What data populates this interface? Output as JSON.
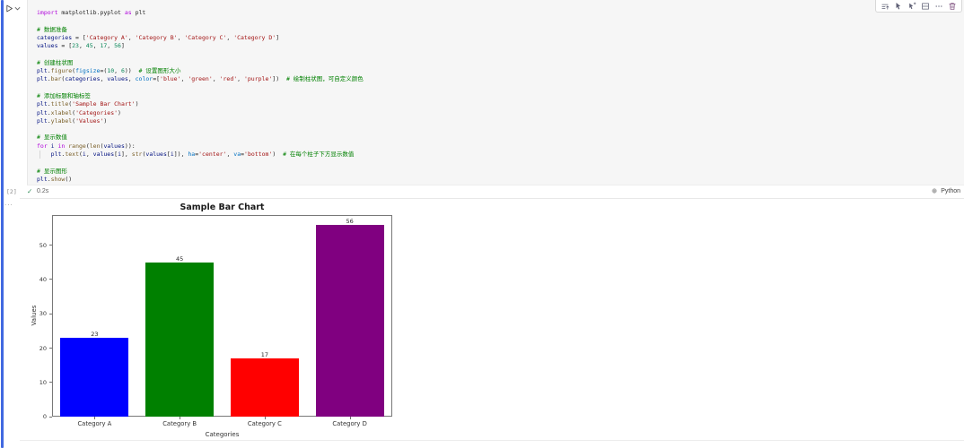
{
  "editor": {
    "execution_count": "[2]",
    "status_check": "✓",
    "status_time": "0.2s",
    "language_label": "Python",
    "code_lines": [
      [
        [
          "k",
          "import"
        ],
        [
          "p",
          " matplotlib.pyplot "
        ],
        [
          "k",
          "as"
        ],
        [
          "p",
          " plt"
        ]
      ],
      [],
      [
        [
          "c",
          "# 数据准备"
        ]
      ],
      [
        [
          "v",
          "categories"
        ],
        [
          "p",
          " = ["
        ],
        [
          "s",
          "'Category A'"
        ],
        [
          "p",
          ", "
        ],
        [
          "s",
          "'Category B'"
        ],
        [
          "p",
          ", "
        ],
        [
          "s",
          "'Category C'"
        ],
        [
          "p",
          ", "
        ],
        [
          "s",
          "'Category D'"
        ],
        [
          "p",
          "]"
        ]
      ],
      [
        [
          "v",
          "values"
        ],
        [
          "p",
          " = ["
        ],
        [
          "n",
          "23"
        ],
        [
          "p",
          ", "
        ],
        [
          "n",
          "45"
        ],
        [
          "p",
          ", "
        ],
        [
          "n",
          "17"
        ],
        [
          "p",
          ", "
        ],
        [
          "n",
          "56"
        ],
        [
          "p",
          "]"
        ]
      ],
      [],
      [
        [
          "c",
          "# 创建柱状图"
        ]
      ],
      [
        [
          "v",
          "plt"
        ],
        [
          "p",
          "."
        ],
        [
          "f",
          "figure"
        ],
        [
          "p",
          "("
        ],
        [
          "a",
          "figsize"
        ],
        [
          "p",
          "=("
        ],
        [
          "n",
          "10"
        ],
        [
          "p",
          ", "
        ],
        [
          "n",
          "6"
        ],
        [
          "p",
          "))  "
        ],
        [
          "c",
          "# 设置图形大小"
        ]
      ],
      [
        [
          "v",
          "plt"
        ],
        [
          "p",
          "."
        ],
        [
          "f",
          "bar"
        ],
        [
          "p",
          "("
        ],
        [
          "v",
          "categories"
        ],
        [
          "p",
          ", "
        ],
        [
          "v",
          "values"
        ],
        [
          "p",
          ", "
        ],
        [
          "a",
          "color"
        ],
        [
          "p",
          "=["
        ],
        [
          "s",
          "'blue'"
        ],
        [
          "p",
          ", "
        ],
        [
          "s",
          "'green'"
        ],
        [
          "p",
          ", "
        ],
        [
          "s",
          "'red'"
        ],
        [
          "p",
          ", "
        ],
        [
          "s",
          "'purple'"
        ],
        [
          "p",
          "])  "
        ],
        [
          "c",
          "# 绘制柱状图，可自定义颜色"
        ]
      ],
      [],
      [
        [
          "c",
          "# 添加标题和轴标签"
        ]
      ],
      [
        [
          "v",
          "plt"
        ],
        [
          "p",
          "."
        ],
        [
          "f",
          "title"
        ],
        [
          "p",
          "("
        ],
        [
          "s",
          "'Sample Bar Chart'"
        ],
        [
          "p",
          ")"
        ]
      ],
      [
        [
          "v",
          "plt"
        ],
        [
          "p",
          "."
        ],
        [
          "f",
          "xlabel"
        ],
        [
          "p",
          "("
        ],
        [
          "s",
          "'Categories'"
        ],
        [
          "p",
          ")"
        ]
      ],
      [
        [
          "v",
          "plt"
        ],
        [
          "p",
          "."
        ],
        [
          "f",
          "ylabel"
        ],
        [
          "p",
          "("
        ],
        [
          "s",
          "'Values'"
        ],
        [
          "p",
          ")"
        ]
      ],
      [],
      [
        [
          "c",
          "# 显示数值"
        ]
      ],
      [
        [
          "k",
          "for"
        ],
        [
          "p",
          " "
        ],
        [
          "v",
          "i"
        ],
        [
          "p",
          " "
        ],
        [
          "k",
          "in"
        ],
        [
          "p",
          " "
        ],
        [
          "f",
          "range"
        ],
        [
          "p",
          "("
        ],
        [
          "f",
          "len"
        ],
        [
          "p",
          "("
        ],
        [
          "v",
          "values"
        ],
        [
          "p",
          ")):"
        ]
      ],
      [
        [
          "p",
          "    "
        ],
        [
          "v",
          "plt"
        ],
        [
          "p",
          "."
        ],
        [
          "f",
          "text"
        ],
        [
          "p",
          "("
        ],
        [
          "v",
          "i"
        ],
        [
          "p",
          ", "
        ],
        [
          "v",
          "values"
        ],
        [
          "p",
          "["
        ],
        [
          "v",
          "i"
        ],
        [
          "p",
          "], "
        ],
        [
          "f",
          "str"
        ],
        [
          "p",
          "("
        ],
        [
          "v",
          "values"
        ],
        [
          "p",
          "["
        ],
        [
          "v",
          "i"
        ],
        [
          "p",
          "]), "
        ],
        [
          "a",
          "ha"
        ],
        [
          "p",
          "="
        ],
        [
          "s",
          "'center'"
        ],
        [
          "p",
          ", "
        ],
        [
          "a",
          "va"
        ],
        [
          "p",
          "="
        ],
        [
          "s",
          "'bottom'"
        ],
        [
          "p",
          ")  "
        ],
        [
          "c",
          "# 在每个柱子下方显示数值"
        ]
      ],
      [],
      [
        [
          "c",
          "# 显示图形"
        ]
      ],
      [
        [
          "v",
          "plt"
        ],
        [
          "p",
          "."
        ],
        [
          "f",
          "show"
        ],
        [
          "p",
          "()"
        ]
      ]
    ]
  },
  "toolbar": {
    "icons": [
      "execute-above-icon",
      "execute-cell-and-below-icon",
      "debug-cell-icon",
      "split-cell-icon",
      "more-actions-icon",
      "delete-cell-icon"
    ]
  },
  "gutter": {
    "run_icon": "run-cell-icon",
    "dropdown_icon": "chevron-down-icon"
  },
  "output": {
    "collapse_label": "..."
  },
  "chart_data": {
    "type": "bar",
    "title": "Sample Bar Chart",
    "xlabel": "Categories",
    "ylabel": "Values",
    "categories": [
      "Category A",
      "Category B",
      "Category C",
      "Category D"
    ],
    "values": [
      23,
      45,
      17,
      56
    ],
    "value_labels": [
      "23",
      "45",
      "17",
      "56"
    ],
    "bar_colors": [
      "#0000ff",
      "#008000",
      "#ff0000",
      "#800080"
    ],
    "yticks": [
      0,
      10,
      20,
      30,
      40,
      50
    ],
    "ylim": [
      0,
      58.8
    ],
    "bar_width_fraction": 0.8,
    "grid": false,
    "legend": "none"
  },
  "colors": {
    "focus_bar": "#4169e1",
    "editor_bg": "#f6f6f6",
    "status_check_green": "#2e8b57"
  }
}
